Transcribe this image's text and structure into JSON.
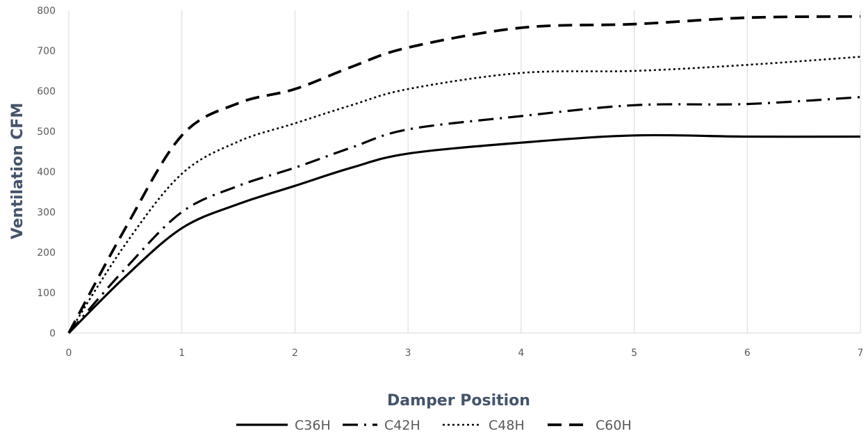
{
  "chart_data": {
    "type": "line",
    "xlabel": "Damper Position",
    "ylabel": "Ventilation CFM",
    "xlim": [
      0,
      7
    ],
    "ylim": [
      0,
      800
    ],
    "x_ticks": [
      0,
      1,
      2,
      3,
      4,
      5,
      6,
      7
    ],
    "y_ticks": [
      0,
      100,
      200,
      300,
      400,
      500,
      600,
      700,
      800
    ],
    "grid": "vertical",
    "legend_position": "bottom",
    "colors": {
      "line": "#000000",
      "grid": "#d9d9d9",
      "tick_text": "#595959",
      "axis_title": "#44546a"
    },
    "series": [
      {
        "name": "C36H",
        "line_style": "solid",
        "points": [
          [
            0,
            0
          ],
          [
            0.5,
            140
          ],
          [
            1,
            260
          ],
          [
            1.5,
            320
          ],
          [
            2,
            365
          ],
          [
            2.5,
            410
          ],
          [
            3,
            445
          ],
          [
            4,
            472
          ],
          [
            5,
            490
          ],
          [
            6,
            487
          ],
          [
            7,
            487
          ]
        ]
      },
      {
        "name": "C42H",
        "line_style": "dash-dot",
        "points": [
          [
            0,
            0
          ],
          [
            0.5,
            160
          ],
          [
            1,
            300
          ],
          [
            1.5,
            365
          ],
          [
            2,
            410
          ],
          [
            2.5,
            460
          ],
          [
            3,
            505
          ],
          [
            4,
            538
          ],
          [
            5,
            565
          ],
          [
            6,
            568
          ],
          [
            7,
            585
          ]
        ]
      },
      {
        "name": "C48H",
        "line_style": "dotted",
        "points": [
          [
            0,
            0
          ],
          [
            0.5,
            220
          ],
          [
            1,
            395
          ],
          [
            1.5,
            475
          ],
          [
            2,
            520
          ],
          [
            2.5,
            565
          ],
          [
            3,
            605
          ],
          [
            4,
            645
          ],
          [
            5,
            650
          ],
          [
            6,
            665
          ],
          [
            7,
            685
          ]
        ]
      },
      {
        "name": "C60H",
        "line_style": "dashed",
        "points": [
          [
            0,
            0
          ],
          [
            0.5,
            260
          ],
          [
            1,
            490
          ],
          [
            1.5,
            570
          ],
          [
            2,
            605
          ],
          [
            2.5,
            660
          ],
          [
            3,
            708
          ],
          [
            4,
            757
          ],
          [
            5,
            766
          ],
          [
            6,
            782
          ],
          [
            7,
            785
          ]
        ]
      }
    ]
  }
}
